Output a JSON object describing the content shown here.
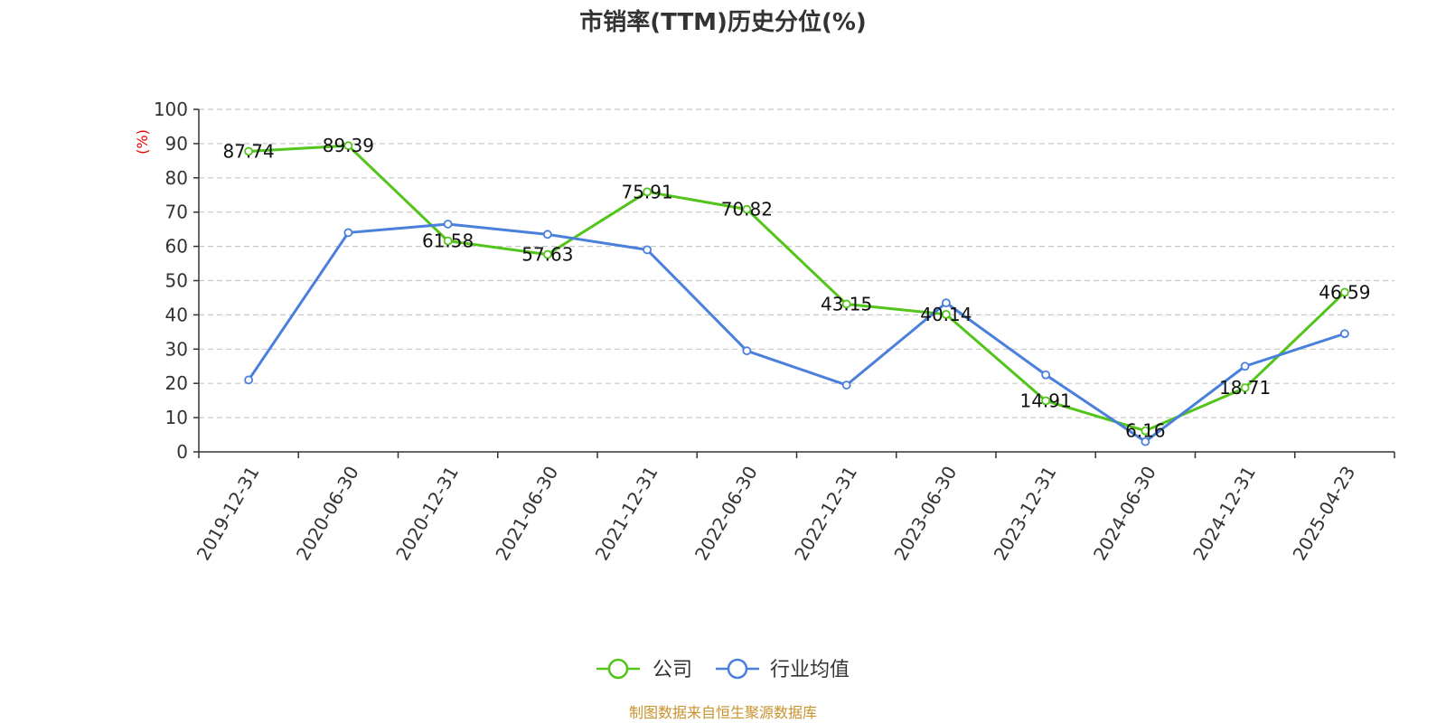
{
  "chart_data": {
    "type": "line",
    "title": "市销率(TTM)历史分位(%)",
    "y_unit": "(%)",
    "ylim": [
      0,
      100
    ],
    "yticks": [
      0,
      10,
      20,
      30,
      40,
      50,
      60,
      70,
      80,
      90,
      100
    ],
    "grid": true,
    "legend_position": "bottom-center",
    "categories": [
      "2019-12-31",
      "2020-06-30",
      "2020-12-31",
      "2021-06-30",
      "2021-12-31",
      "2022-06-30",
      "2022-12-31",
      "2023-06-30",
      "2023-12-31",
      "2024-06-30",
      "2024-12-31",
      "2025-04-23"
    ],
    "series": [
      {
        "name": "公司",
        "color": "#52c41a",
        "values": [
          87.74,
          89.39,
          61.58,
          57.63,
          75.91,
          70.82,
          43.15,
          40.14,
          14.91,
          6.16,
          18.71,
          46.59
        ],
        "labels": [
          "87.74",
          "89.39",
          "61.58",
          "57.63",
          "75.91",
          "70.82",
          "43.15",
          "40.14",
          "14.91",
          "6.16",
          "18.71",
          "46.59"
        ]
      },
      {
        "name": "行业均值",
        "color": "#4a7fdc",
        "values": [
          21,
          64,
          66.5,
          63.5,
          59,
          29.5,
          19.5,
          43.5,
          22.5,
          3,
          25,
          34.5
        ]
      }
    ]
  },
  "footer": {
    "source": "制图数据来自恒生聚源数据库"
  }
}
